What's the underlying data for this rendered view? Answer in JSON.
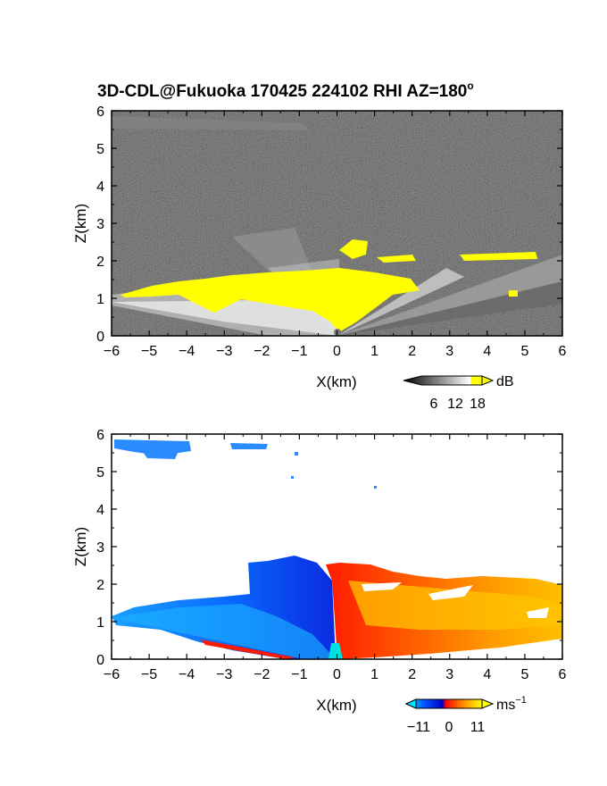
{
  "title": "3D-CDL@Fukuoka 170425 224102 RHI AZ=180",
  "title_superscript": "o",
  "chart_data": [
    {
      "type": "heatmap",
      "quantity": "backscatter",
      "title": "3D-CDL@Fukuoka 170425 224102 RHI AZ=180°",
      "xlabel": "X(km)",
      "ylabel": "Z(km)",
      "xlim": [
        -6,
        6
      ],
      "ylim": [
        0,
        6
      ],
      "xticks": [
        -6,
        -5,
        -4,
        -3,
        -2,
        -1,
        0,
        1,
        2,
        3,
        4,
        5,
        6
      ],
      "yticks": [
        0,
        1,
        2,
        3,
        4,
        5,
        6
      ],
      "grid": false,
      "colorbar": {
        "ticks": [
          6,
          12,
          18
        ],
        "unit": "dB",
        "colors": [
          "#000000",
          "#ffffff",
          "#ffff00"
        ]
      }
    },
    {
      "type": "heatmap",
      "quantity": "radial velocity",
      "xlabel": "X(km)",
      "ylabel": "Z(km)",
      "xlim": [
        -6,
        6
      ],
      "ylim": [
        0,
        6
      ],
      "xticks": [
        -6,
        -5,
        -4,
        -3,
        -2,
        -1,
        0,
        1,
        2,
        3,
        4,
        5,
        6
      ],
      "yticks": [
        0,
        1,
        2,
        3,
        4,
        5,
        6
      ],
      "grid": false,
      "colorbar": {
        "ticks": [
          -11,
          0,
          11
        ],
        "unit": "ms",
        "unit_exp": "−1",
        "colors": [
          "#00e6ff",
          "#0050ff",
          "#0000c8",
          "#ff0000",
          "#ff8c00",
          "#ffff00"
        ]
      }
    }
  ],
  "labels": {
    "xlabel": "X(km)",
    "ylabel": "Z(km)",
    "x_ticks": [
      "−6",
      "−5",
      "−4",
      "−3",
      "−2",
      "−1",
      "0",
      "1",
      "2",
      "3",
      "4",
      "5",
      "6"
    ],
    "y_ticks": [
      "0",
      "1",
      "2",
      "3",
      "4",
      "5",
      "6"
    ],
    "cb1_ticks": [
      "6",
      "12",
      "18"
    ],
    "cb1_unit": "dB",
    "cb2_ticks": [
      "−11",
      "0",
      "11"
    ],
    "cb2_unit": "ms",
    "cb2_unit_exp": "−1"
  },
  "colors": {
    "background": "#ffffff",
    "echo_yellow": "#ffff00"
  }
}
